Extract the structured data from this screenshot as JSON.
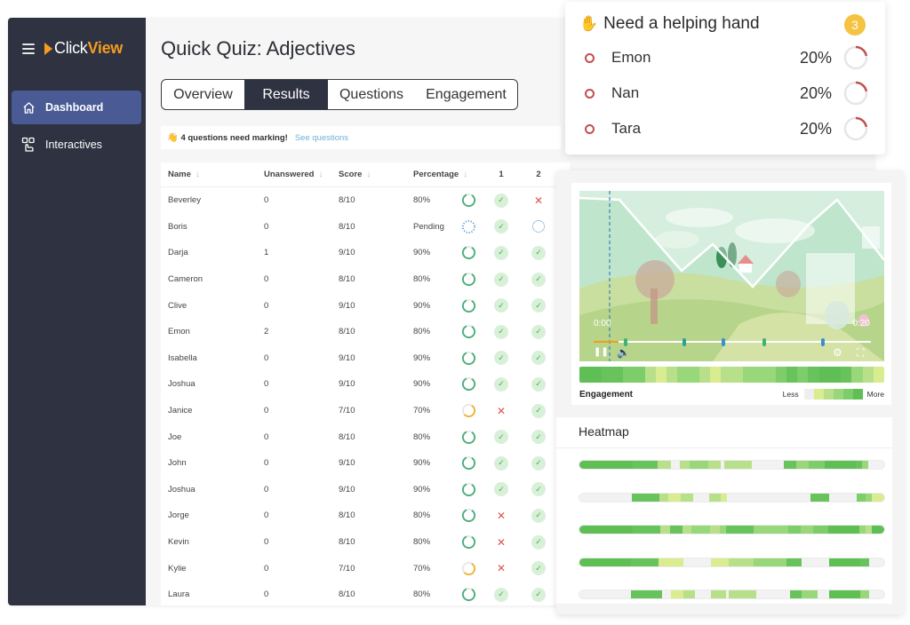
{
  "app": {
    "logo_click": "Click",
    "logo_view": "View",
    "sidebar": {
      "items": [
        {
          "label": "Dashboard",
          "icon": "home-icon",
          "active": true
        },
        {
          "label": "Interactives",
          "icon": "interactive-tap-icon",
          "active": false
        }
      ]
    },
    "page_title": "Quick Quiz: Adjectives",
    "tabs": [
      {
        "label": "Overview",
        "active": false
      },
      {
        "label": "Results",
        "active": true
      },
      {
        "label": "Questions",
        "active": false
      },
      {
        "label": "Engagement",
        "active": false
      }
    ],
    "notice": {
      "icon": "👋",
      "message": "4 questions need marking!",
      "link": "See questions"
    }
  },
  "table": {
    "columns": [
      "Name",
      "Unanswered",
      "Score",
      "Percentage",
      "1",
      "2"
    ],
    "sort_icon": "↓",
    "rows": [
      {
        "name": "Beverley",
        "unanswered": "0",
        "score": "8/10",
        "percentage": "80%",
        "ring": "green",
        "q1": "correct",
        "q2": "incorrect"
      },
      {
        "name": "Boris",
        "unanswered": "0",
        "score": "8/10",
        "percentage": "Pending",
        "ring": "pending",
        "q1": "correct",
        "q2": "pending"
      },
      {
        "name": "Darja",
        "unanswered": "1",
        "score": "9/10",
        "percentage": "90%",
        "ring": "green",
        "q1": "correct",
        "q2": "correct"
      },
      {
        "name": "Cameron",
        "unanswered": "0",
        "score": "8/10",
        "percentage": "80%",
        "ring": "green",
        "q1": "correct",
        "q2": "correct"
      },
      {
        "name": "Clive",
        "unanswered": "0",
        "score": "9/10",
        "percentage": "90%",
        "ring": "green",
        "q1": "correct",
        "q2": "correct"
      },
      {
        "name": "Emon",
        "unanswered": "2",
        "score": "8/10",
        "percentage": "80%",
        "ring": "green",
        "q1": "correct",
        "q2": "correct"
      },
      {
        "name": "Isabella",
        "unanswered": "0",
        "score": "9/10",
        "percentage": "90%",
        "ring": "green",
        "q1": "correct",
        "q2": "correct"
      },
      {
        "name": "Joshua",
        "unanswered": "0",
        "score": "9/10",
        "percentage": "90%",
        "ring": "green",
        "q1": "correct",
        "q2": "correct"
      },
      {
        "name": "Janice",
        "unanswered": "0",
        "score": "7/10",
        "percentage": "70%",
        "ring": "orange",
        "q1": "incorrect",
        "q2": "correct"
      },
      {
        "name": "Joe",
        "unanswered": "0",
        "score": "8/10",
        "percentage": "80%",
        "ring": "green",
        "q1": "correct",
        "q2": "correct"
      },
      {
        "name": "John",
        "unanswered": "0",
        "score": "9/10",
        "percentage": "90%",
        "ring": "green",
        "q1": "correct",
        "q2": "correct"
      },
      {
        "name": "Joshua",
        "unanswered": "0",
        "score": "9/10",
        "percentage": "90%",
        "ring": "green",
        "q1": "correct",
        "q2": "correct"
      },
      {
        "name": "Jorge",
        "unanswered": "0",
        "score": "8/10",
        "percentage": "80%",
        "ring": "green",
        "q1": "incorrect",
        "q2": "correct"
      },
      {
        "name": "Kevin",
        "unanswered": "0",
        "score": "8/10",
        "percentage": "80%",
        "ring": "green",
        "q1": "incorrect",
        "q2": "correct"
      },
      {
        "name": "Kylie",
        "unanswered": "0",
        "score": "7/10",
        "percentage": "70%",
        "ring": "orange",
        "q1": "incorrect",
        "q2": "correct"
      },
      {
        "name": "Laura",
        "unanswered": "0",
        "score": "8/10",
        "percentage": "80%",
        "ring": "green",
        "q1": "correct",
        "q2": "correct"
      }
    ]
  },
  "help_card": {
    "icon": "✋",
    "title": "Need a helping hand",
    "count": "3",
    "students": [
      {
        "name": "Emon",
        "percentage": "20%"
      },
      {
        "name": "Nan",
        "percentage": "20%"
      },
      {
        "name": "Tara",
        "percentage": "20%"
      }
    ]
  },
  "engagement": {
    "time_start": "0:00",
    "time_end": "0:20",
    "label": "Engagement",
    "legend_less": "Less",
    "legend_more": "More",
    "legend_colors": [
      "#eeeeee",
      "#d9ec8f",
      "#b8e08a",
      "#98d77a",
      "#7dcd6b",
      "#5fbf55"
    ],
    "bar": [
      "#5fbf55",
      "#5fbf55",
      "#68c35c",
      "#68c35c",
      "#7dcd6b",
      "#7dcd6b",
      "#b8e08a",
      "#d9ec8f",
      "#b8e08a",
      "#98d77a",
      "#98d77a",
      "#b8e08a",
      "#d9ec8f",
      "#b8e08a",
      "#b8e08a",
      "#98d77a",
      "#98d77a",
      "#98d77a",
      "#7dcd6b",
      "#68c35c",
      "#7dcd6b",
      "#68c35c",
      "#5fbf55",
      "#5fbf55",
      "#68c35c",
      "#98d77a",
      "#b8e08a",
      "#d9ec8f"
    ],
    "markers": [
      {
        "pos": 11,
        "color": "#3cb371"
      },
      {
        "pos": 32,
        "color": "#2aa198"
      },
      {
        "pos": 46,
        "color": "#3a8fd0"
      },
      {
        "pos": 61,
        "color": "#3cb371"
      },
      {
        "pos": 82,
        "color": "#3a8fd0"
      }
    ]
  },
  "heatmap": {
    "title": "Heatmap",
    "rows": [
      [
        [
          "#5fbf55",
          10
        ],
        [
          "#5fbf55",
          7
        ],
        [
          "#68c35c",
          8
        ],
        [
          "#b8e08a",
          4
        ],
        [
          "#f2f2f2",
          3
        ],
        [
          "#b8e08a",
          3
        ],
        [
          "#98d77a",
          6
        ],
        [
          "#b8e08a",
          4
        ],
        [
          "#f2f2f2",
          1
        ],
        [
          "#b8e08a",
          9
        ],
        [
          "#f2f2f2",
          10
        ],
        [
          "#68c35c",
          4
        ],
        [
          "#98d77a",
          4
        ],
        [
          "#7dcd6b",
          5
        ],
        [
          "#5fbf55",
          10
        ],
        [
          "#68c35c",
          2
        ],
        [
          "#98d77a",
          2
        ],
        [
          "#f2f2f2",
          5
        ]
      ],
      [
        [
          "#f2f2f2",
          17
        ],
        [
          "#68c35c",
          9
        ],
        [
          "#b8e08a",
          3
        ],
        [
          "#d9ec8f",
          4
        ],
        [
          "#b8e08a",
          4
        ],
        [
          "#f2f2f2",
          5
        ],
        [
          "#b8e08a",
          4
        ],
        [
          "#d9ec8f",
          2
        ],
        [
          "#f2f2f2",
          27
        ],
        [
          "#68c35c",
          6
        ],
        [
          "#f2f2f2",
          9
        ],
        [
          "#7dcd6b",
          3
        ],
        [
          "#98d77a",
          2
        ],
        [
          "#d9ec8f",
          4
        ]
      ],
      [
        [
          "#5fbf55",
          17
        ],
        [
          "#68c35c",
          9
        ],
        [
          "#b8e08a",
          3
        ],
        [
          "#68c35c",
          4
        ],
        [
          "#b8e08a",
          3
        ],
        [
          "#98d77a",
          6
        ],
        [
          "#b8e08a",
          3
        ],
        [
          "#98d77a",
          2
        ],
        [
          "#68c35c",
          9
        ],
        [
          "#98d77a",
          11
        ],
        [
          "#7dcd6b",
          4
        ],
        [
          "#98d77a",
          4
        ],
        [
          "#7dcd6b",
          5
        ],
        [
          "#5fbf55",
          10
        ],
        [
          "#98d77a",
          2
        ],
        [
          "#b8e08a",
          2
        ],
        [
          "#5fbf55",
          4
        ]
      ],
      [
        [
          "#5fbf55",
          17
        ],
        [
          "#68c35c",
          9
        ],
        [
          "#d9ec8f",
          8
        ],
        [
          "#f2f2f2",
          9
        ],
        [
          "#d9ec8f",
          6
        ],
        [
          "#b8e08a",
          8
        ],
        [
          "#98d77a",
          11
        ],
        [
          "#68c35c",
          5
        ],
        [
          "#f2f2f2",
          9
        ],
        [
          "#5fbf55",
          10
        ],
        [
          "#68c35c",
          3
        ],
        [
          "#f2f2f2",
          5
        ]
      ],
      [
        [
          "#f2f2f2",
          17
        ],
        [
          "#68c35c",
          10
        ],
        [
          "#f2f2f2",
          3
        ],
        [
          "#d9ec8f",
          4
        ],
        [
          "#b8e08a",
          4
        ],
        [
          "#f2f2f2",
          5
        ],
        [
          "#b8e08a",
          5
        ],
        [
          "#f2f2f2",
          1
        ],
        [
          "#b8e08a",
          9
        ],
        [
          "#f2f2f2",
          11
        ],
        [
          "#68c35c",
          4
        ],
        [
          "#98d77a",
          5
        ],
        [
          "#f2f2f2",
          4
        ],
        [
          "#5fbf55",
          10
        ],
        [
          "#98d77a",
          3
        ],
        [
          "#f2f2f2",
          5
        ]
      ]
    ]
  },
  "colors": {
    "sidebar_bg": "#2f3241",
    "sidebar_active": "#4a5a94",
    "brand_orange": "#f39c1f",
    "ring_green": "#4caf7a",
    "ring_orange": "#f2b134",
    "pending_blue": "#4a90c8",
    "incorrect_red": "#d9534f",
    "help_red": "#c0504d",
    "badge_yellow": "#f5c342"
  }
}
